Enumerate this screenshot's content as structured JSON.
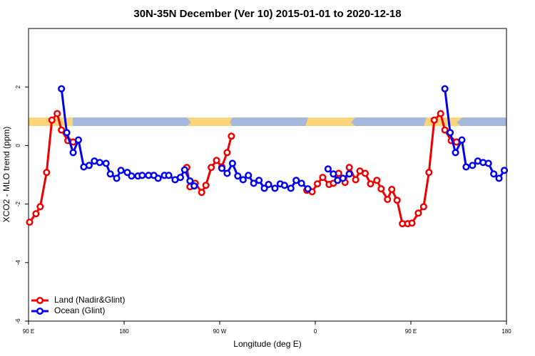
{
  "chart_data": {
    "type": "line",
    "title": "30N-35N December (Ver 10)   2015-01-01 to 2020-12-18",
    "x_label": "Longitude (deg E)",
    "y_label": "XCO2 - MLO trend (ppm)",
    "xlim": [
      90,
      540
    ],
    "ylim": [
      -6,
      4
    ],
    "xticks": [
      {
        "value": 90,
        "label": "90 E"
      },
      180,
      {
        "value": 270,
        "label": "90 W"
      },
      {
        "value": 360,
        "label": "0"
      },
      {
        "value": 450,
        "label": "90 E"
      },
      {
        "value": 540,
        "label": "180"
      }
    ],
    "yticks": [
      -6,
      -4,
      -2,
      0,
      2
    ],
    "legend": "bottom-left",
    "series": [
      {
        "name": "Land (Nadir&Glint)",
        "color": "#ee0000",
        "x": [
          91,
          97,
          101,
          107,
          112,
          117,
          121,
          127,
          132,
          185,
          239,
          242,
          247,
          253,
          257,
          262,
          267,
          272,
          277,
          281,
          316,
          352,
          357,
          362,
          367,
          373,
          377,
          382,
          388,
          392,
          398,
          402,
          407,
          412,
          418,
          422,
          428,
          432,
          437,
          442,
          447,
          451,
          457,
          462,
          467,
          472,
          478,
          482,
          488,
          493
        ],
        "values": [
          -2.62,
          -2.33,
          -2.09,
          -0.92,
          0.87,
          1.09,
          0.53,
          0.17,
          0.12,
          null,
          -0.75,
          -1.41,
          -1.29,
          -1.6,
          -1.36,
          -0.75,
          -0.51,
          -0.73,
          -0.24,
          0.32,
          null,
          -1.53,
          -1.58,
          -1.31,
          -1.09,
          -1.33,
          -1.29,
          -0.95,
          -1.26,
          -0.75,
          -1.17,
          -0.87,
          -0.95,
          -1.31,
          -1.19,
          -1.48,
          -1.84,
          -1.5,
          -1.87,
          -2.67,
          -2.67,
          -2.65,
          -2.31,
          -2.09,
          -0.92,
          0.87,
          1.09,
          0.53,
          0.17,
          0.12
        ]
      },
      {
        "name": "Ocean (Glint)",
        "color": "#0000ee",
        "x": [
          121,
          126,
          132,
          137,
          142,
          147,
          152,
          157,
          163,
          167,
          173,
          177,
          183,
          187,
          193,
          197,
          203,
          208,
          212,
          218,
          222,
          228,
          233,
          237,
          242,
          246,
          259,
          272,
          277,
          282,
          287,
          292,
          297,
          302,
          307,
          312,
          316,
          322,
          327,
          331,
          337,
          342,
          347,
          353,
          362,
          372,
          377,
          381,
          386,
          392,
          450,
          482,
          487,
          492,
          498,
          502,
          508,
          513,
          518,
          523,
          528,
          533,
          538
        ],
        "values": [
          1.94,
          0.44,
          -0.24,
          0.19,
          -0.73,
          -0.68,
          -0.53,
          -0.58,
          -0.61,
          -0.97,
          -1.12,
          -0.85,
          -0.92,
          -1.04,
          -1.04,
          -1.02,
          -1.02,
          -1.02,
          -1.12,
          -1.02,
          -1.02,
          -1.17,
          -1.09,
          -0.83,
          -1.21,
          -1.38,
          null,
          -0.78,
          -0.95,
          -0.61,
          -1.04,
          -1.17,
          -1.02,
          -1.29,
          -1.19,
          -1.46,
          -1.33,
          -1.46,
          -1.31,
          -1.36,
          -1.46,
          -1.19,
          -1.29,
          -1.48,
          null,
          -0.8,
          -0.97,
          -1.19,
          -1.12,
          -0.97,
          null,
          1.94,
          0.44,
          -0.24,
          0.19,
          -0.73,
          -0.68,
          -0.53,
          -0.58,
          -0.61,
          -0.97,
          -1.12,
          -0.85
        ]
      }
    ]
  }
}
